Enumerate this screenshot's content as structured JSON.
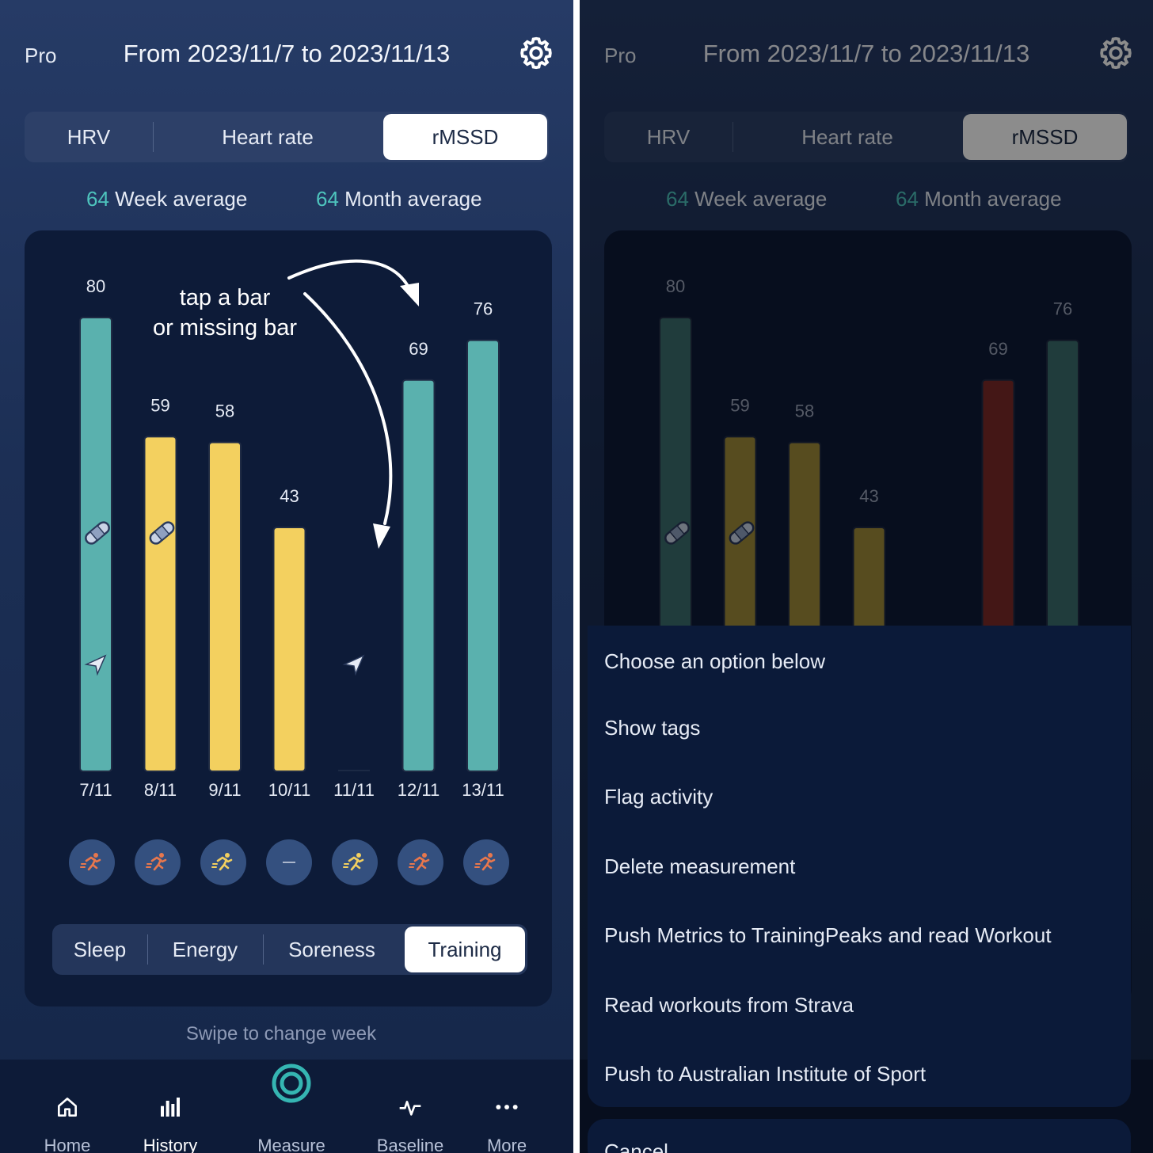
{
  "header": {
    "pro_label": "Pro",
    "date_range": "From 2023/11/7 to 2023/11/13"
  },
  "metric_tabs": [
    "HRV",
    "Heart rate",
    "rMSSD"
  ],
  "selected_metric": "rMSSD",
  "averages": {
    "week_value": "64",
    "week_label": "Week average",
    "month_value": "64",
    "month_label": "Month average"
  },
  "annotation": {
    "line1": "tap a bar",
    "line2": "or missing bar"
  },
  "chart_data": {
    "type": "bar",
    "categories": [
      "7/11",
      "8/11",
      "9/11",
      "10/11",
      "11/11",
      "12/11",
      "13/11"
    ],
    "values": [
      80,
      59,
      58,
      43,
      null,
      69,
      76
    ],
    "value_labels": [
      "80",
      "59",
      "58",
      "43",
      "",
      "69",
      "76"
    ],
    "colors_left": [
      "#5ab1ae",
      "#f3d05f",
      "#f3d05f",
      "#f3d05f",
      "#5ab1ae",
      "#5ab1ae",
      "#5ab1ae"
    ],
    "colors_right": [
      "#3b6d6e",
      "#9f8a3a",
      "#9f8a3a",
      "#9f8a3a",
      "#3b6d6e",
      "#7c2a28",
      "#3b6d6e"
    ],
    "ylim": [
      0,
      80
    ],
    "bandage_days": [
      "7/11",
      "8/11"
    ],
    "plane_days": [
      "7/11",
      "11/11"
    ]
  },
  "training_icons": [
    "runner",
    "runner",
    "runner",
    "dash",
    "runner",
    "runner",
    "runner"
  ],
  "colors": {
    "accent": "#4ec4bd",
    "teal": "#5ab1ae",
    "yellow": "#f3d05f",
    "red": "#7c2a28",
    "orange": "#e8774d"
  },
  "bottom_tabs": [
    "Sleep",
    "Energy",
    "Soreness",
    "Training"
  ],
  "selected_bottom_tab": "Training",
  "swipe_hint": "Swipe to change week",
  "nav": [
    {
      "label": "Home",
      "icon": "home-icon"
    },
    {
      "label": "History",
      "icon": "history-icon"
    },
    {
      "label": "Measure",
      "icon": "measure-icon"
    },
    {
      "label": "Baseline",
      "icon": "baseline-icon"
    },
    {
      "label": "More",
      "icon": "more-icon"
    }
  ],
  "sheet": {
    "title": "Choose an option below",
    "options": [
      "Show tags",
      "Flag activity",
      "Delete measurement",
      "Push Metrics to TrainingPeaks and read Workout",
      "Read workouts from Strava",
      "Push to Australian Institute of Sport"
    ],
    "cancel": "Cancel"
  }
}
